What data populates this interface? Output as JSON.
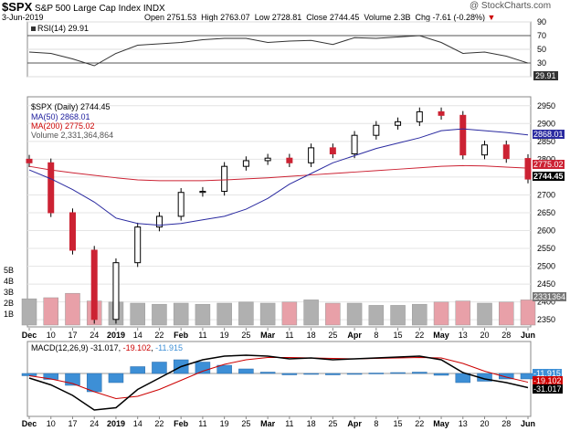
{
  "header": {
    "symbol": "$SPX",
    "name": "S&P 500 Large Cap Index",
    "exchange": "INDX",
    "watermark": "@ StockCharts.com",
    "date": "3-Jun-2019",
    "open_label": "Open",
    "open": "2751.53",
    "high_label": "High",
    "high": "2763.07",
    "low_label": "Low",
    "low": "2728.81",
    "close_label": "Close",
    "close": "2744.45",
    "volume_label": "Volume",
    "volume": "2.3B",
    "chg_label": "Chg",
    "chg": "-7.61 (-0.28%)",
    "chg_arrow": "▼"
  },
  "rsi_panel": {
    "legend": "RSI(14) 29.91",
    "last": "29.91",
    "y_ticks": [
      "90",
      "70",
      "50",
      "30",
      "10"
    ]
  },
  "price_panel": {
    "legend_title": "$SPX (Daily) 2744.45",
    "legend_ma50": "MA(50) 2868.01",
    "legend_ma200": "MA(200) 2775.02",
    "legend_volume": "Volume 2,331,364,864",
    "ma50_last": "2868.01",
    "ma200_last": "2775.02",
    "close_last": "2744.45",
    "volume_last": "2331364",
    "y_ticks": [
      "2950",
      "2900",
      "2850",
      "2800",
      "2750",
      "2700",
      "2650",
      "2600",
      "2550",
      "2500",
      "2450",
      "2400",
      "2350"
    ],
    "volume_ticks": [
      "5B",
      "4B",
      "3B",
      "2B",
      "1B"
    ]
  },
  "macd_panel": {
    "legend_prefix": "MACD(12,26,9)",
    "macd": "-31.017",
    "signal": "-19.102",
    "hist": "-11.915",
    "last_values": [
      "-11.915",
      "-19.102",
      "-31.017"
    ]
  },
  "x_axis_labels": [
    "Dec",
    "10",
    "17",
    "24",
    "2019",
    "14",
    "22",
    "Feb",
    "11",
    "19",
    "25",
    "Mar",
    "11",
    "18",
    "25",
    "Apr",
    "8",
    "15",
    "22",
    "May",
    "13",
    "20",
    "28",
    "Jun"
  ],
  "colors": {
    "up": "#000000",
    "down": "#cc2233",
    "ma50": "#2a2aa0",
    "ma200": "#cc2233",
    "macd_line": "#000000",
    "signal_line": "#cc0000",
    "histogram": "#3d8fd6",
    "volume_up": "#b0b0b0",
    "volume_down": "#e8a0a8"
  },
  "chart_data": [
    {
      "type": "line",
      "title": "RSI(14)",
      "ylim": [
        10,
        90
      ],
      "x": [
        "Dec 3",
        "Dec 10",
        "Dec 17",
        "Dec 24",
        "Jan 2",
        "Jan 14",
        "Jan 22",
        "Feb 1",
        "Feb 11",
        "Feb 19",
        "Feb 25",
        "Mar 1",
        "Mar 11",
        "Mar 18",
        "Mar 25",
        "Apr 1",
        "Apr 8",
        "Apr 15",
        "Apr 22",
        "May 1",
        "May 13",
        "May 20",
        "May 28",
        "Jun 3"
      ],
      "series": [
        {
          "name": "RSI(14)",
          "values": [
            46,
            44,
            36,
            26,
            44,
            56,
            58,
            60,
            64,
            66,
            66,
            60,
            62,
            63,
            57,
            67,
            66,
            68,
            70,
            60,
            44,
            46,
            40,
            29.91
          ]
        }
      ]
    },
    {
      "type": "line",
      "title": "$SPX (Daily)",
      "ylim": [
        2330,
        2975
      ],
      "x": [
        "Dec 3",
        "Dec 10",
        "Dec 17",
        "Dec 24",
        "Jan 2",
        "Jan 14",
        "Jan 22",
        "Feb 1",
        "Feb 11",
        "Feb 19",
        "Feb 25",
        "Mar 1",
        "Mar 11",
        "Mar 18",
        "Mar 25",
        "Apr 1",
        "Apr 8",
        "Apr 15",
        "Apr 22",
        "May 1",
        "May 13",
        "May 20",
        "May 28",
        "Jun 3"
      ],
      "series": [
        {
          "name": "$SPX",
          "values": [
            2790,
            2650,
            2545,
            2351,
            2510,
            2610,
            2640,
            2707,
            2710,
            2780,
            2796,
            2803,
            2790,
            2832,
            2815,
            2867,
            2895,
            2905,
            2933,
            2923,
            2812,
            2840,
            2802,
            2744.45
          ]
        },
        {
          "name": "MA(50)",
          "values": [
            2770,
            2745,
            2715,
            2680,
            2635,
            2620,
            2615,
            2620,
            2630,
            2640,
            2660,
            2690,
            2730,
            2760,
            2790,
            2810,
            2830,
            2845,
            2860,
            2880,
            2885,
            2880,
            2875,
            2868.01
          ]
        },
        {
          "name": "MA(200)",
          "values": [
            2780,
            2770,
            2762,
            2755,
            2748,
            2742,
            2740,
            2740,
            2740,
            2742,
            2745,
            2748,
            2752,
            2756,
            2760,
            2764,
            2768,
            2772,
            2776,
            2780,
            2782,
            2781,
            2778,
            2775.02
          ]
        }
      ]
    },
    {
      "type": "bar",
      "title": "Volume",
      "x": [
        "Dec 3",
        "Dec 10",
        "Dec 17",
        "Dec 24",
        "Jan 2",
        "Jan 14",
        "Jan 22",
        "Feb 1",
        "Feb 11",
        "Feb 19",
        "Feb 25",
        "Mar 1",
        "Mar 11",
        "Mar 18",
        "Mar 25",
        "Apr 1",
        "Apr 8",
        "Apr 15",
        "Apr 22",
        "May 1",
        "May 13",
        "May 20",
        "May 28",
        "Jun 3"
      ],
      "values": [
        2.4,
        2.5,
        2.9,
        2.2,
        2.1,
        2.0,
        1.9,
        2.0,
        1.9,
        2.0,
        2.1,
        2.0,
        2.1,
        2.3,
        2.0,
        2.0,
        1.8,
        1.8,
        1.9,
        2.1,
        2.2,
        2.0,
        2.1,
        2.3
      ]
    },
    {
      "type": "line",
      "title": "MACD(12,26,9)",
      "x": [
        "Dec 3",
        "Dec 10",
        "Dec 17",
        "Dec 24",
        "Jan 2",
        "Jan 14",
        "Jan 22",
        "Feb 1",
        "Feb 11",
        "Feb 19",
        "Feb 25",
        "Mar 1",
        "Mar 11",
        "Mar 18",
        "Mar 25",
        "Apr 1",
        "Apr 8",
        "Apr 15",
        "Apr 22",
        "May 1",
        "May 13",
        "May 20",
        "May 28",
        "Jun 3"
      ],
      "series": [
        {
          "name": "MACD",
          "values": [
            -10,
            -25,
            -48,
            -80,
            -75,
            -35,
            -10,
            15,
            30,
            38,
            40,
            38,
            32,
            34,
            30,
            32,
            34,
            36,
            38,
            30,
            2,
            -12,
            -20,
            -31.017
          ]
        },
        {
          "name": "Signal",
          "values": [
            -5,
            -12,
            -22,
            -40,
            -55,
            -50,
            -35,
            -15,
            5,
            20,
            30,
            35,
            35,
            34,
            33,
            32,
            33,
            34,
            35,
            34,
            22,
            5,
            -8,
            -19.102
          ]
        },
        {
          "name": "Histogram",
          "values": [
            -5,
            -13,
            -26,
            -40,
            -20,
            15,
            25,
            30,
            25,
            18,
            10,
            3,
            -3,
            0,
            -3,
            0,
            1,
            2,
            3,
            -4,
            -20,
            -17,
            -12,
            -11.915
          ]
        }
      ]
    }
  ]
}
